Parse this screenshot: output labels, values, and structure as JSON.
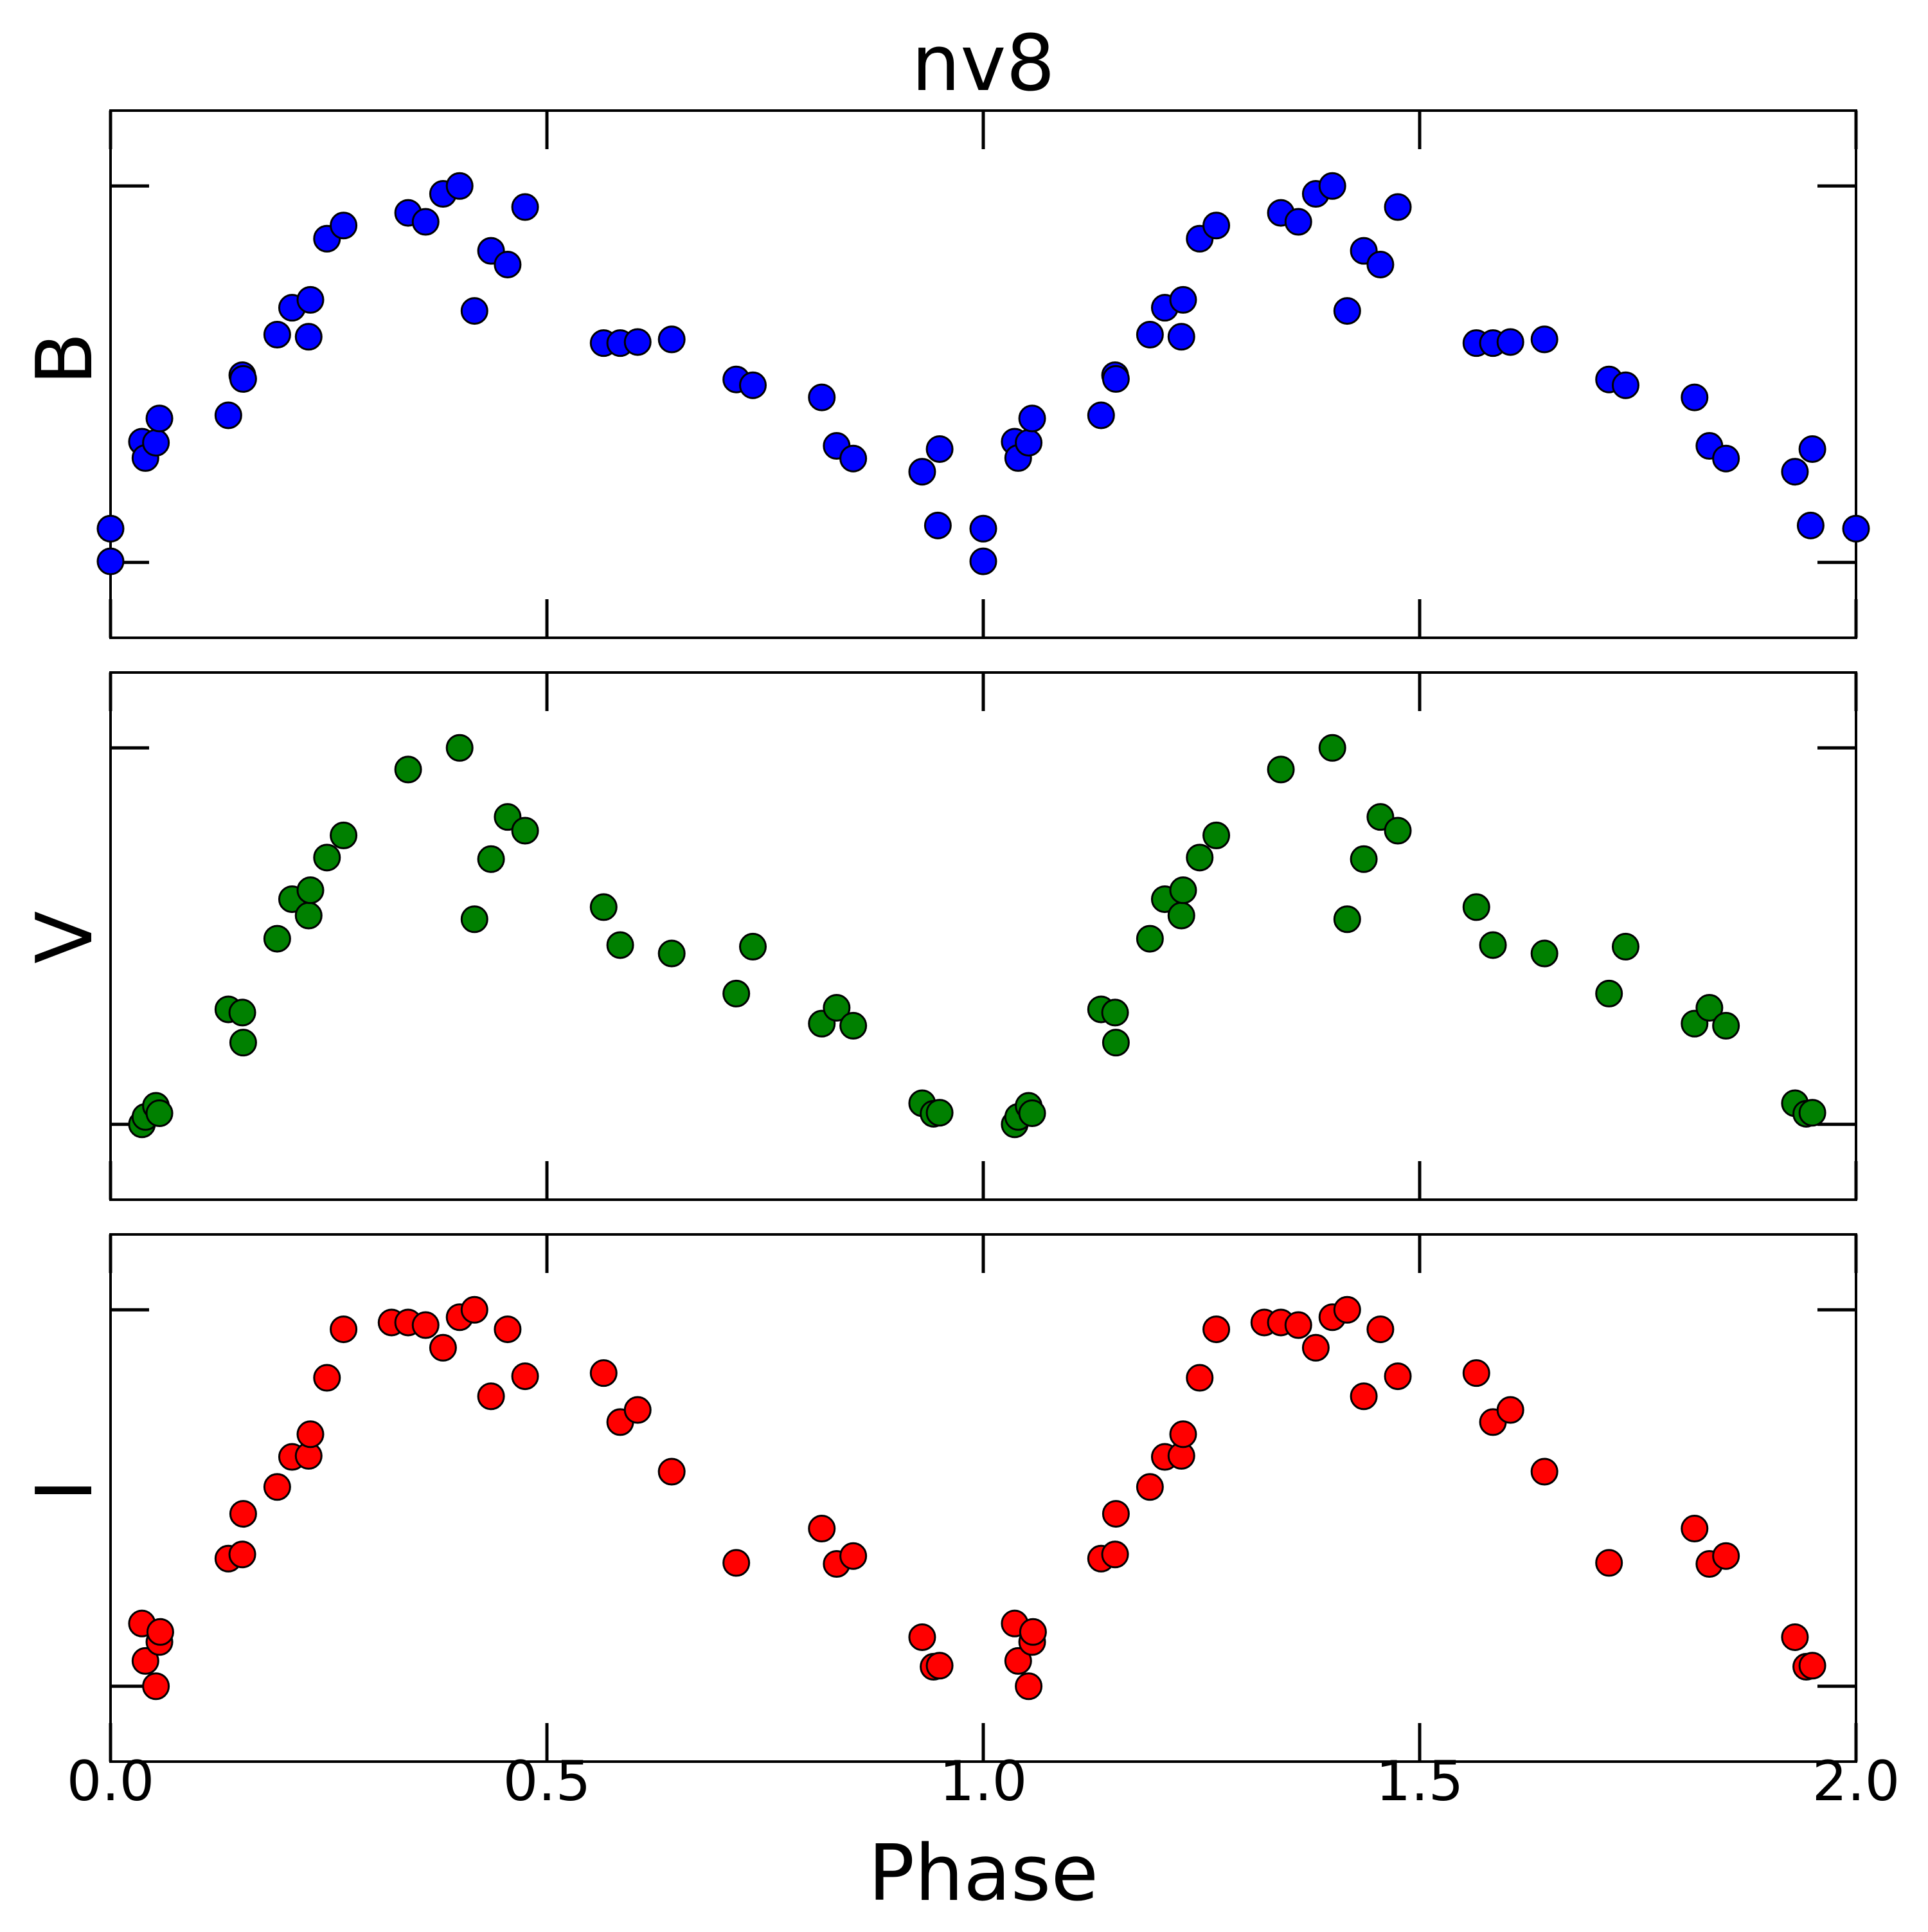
{
  "chart_data": {
    "type": "scatter",
    "title": "nv8",
    "xlabel": "Phase",
    "xlim": [
      0.0,
      2.0
    ],
    "x_ticks": [
      "0.0",
      "0.5",
      "1.0",
      "1.5",
      "2.0"
    ],
    "x_tick_values": [
      0.0,
      0.5,
      1.0,
      1.5,
      2.0
    ],
    "shared_x": true,
    "grid": false,
    "marker": "circle",
    "marker_edge_color": "#000000",
    "panels": [
      {
        "ylabel": "B",
        "color": "#0000ff",
        "ylim": [
          0,
          1
        ],
        "y_tick_values": [
          0.143,
          0.857
        ],
        "points": [
          [
            0.0,
            0.207
          ],
          [
            0.0,
            0.145
          ],
          [
            0.036,
            0.372
          ],
          [
            0.04,
            0.341
          ],
          [
            0.052,
            0.37
          ],
          [
            0.056,
            0.416
          ],
          [
            0.135,
            0.422
          ],
          [
            0.151,
            0.498
          ],
          [
            0.152,
            0.491
          ],
          [
            0.191,
            0.575
          ],
          [
            0.208,
            0.626
          ],
          [
            0.227,
            0.571
          ],
          [
            0.229,
            0.641
          ],
          [
            0.248,
            0.757
          ],
          [
            0.267,
            0.782
          ],
          [
            0.341,
            0.806
          ],
          [
            0.361,
            0.789
          ],
          [
            0.381,
            0.842
          ],
          [
            0.4,
            0.857
          ],
          [
            0.417,
            0.62
          ],
          [
            0.436,
            0.734
          ],
          [
            0.455,
            0.708
          ],
          [
            0.475,
            0.817
          ],
          [
            0.565,
            0.559
          ],
          [
            0.584,
            0.559
          ],
          [
            0.604,
            0.561
          ],
          [
            0.643,
            0.566
          ],
          [
            0.717,
            0.49
          ],
          [
            0.736,
            0.479
          ],
          [
            0.815,
            0.456
          ],
          [
            0.832,
            0.364
          ],
          [
            0.851,
            0.34
          ],
          [
            0.93,
            0.315
          ],
          [
            0.948,
            0.213
          ],
          [
            0.95,
            0.358
          ],
          [
            1.0,
            0.207
          ],
          [
            1.0,
            0.145
          ],
          [
            1.036,
            0.372
          ],
          [
            1.04,
            0.341
          ],
          [
            1.052,
            0.37
          ],
          [
            1.056,
            0.416
          ],
          [
            1.135,
            0.422
          ],
          [
            1.151,
            0.498
          ],
          [
            1.152,
            0.491
          ],
          [
            1.191,
            0.575
          ],
          [
            1.208,
            0.626
          ],
          [
            1.227,
            0.571
          ],
          [
            1.229,
            0.641
          ],
          [
            1.248,
            0.757
          ],
          [
            1.267,
            0.782
          ],
          [
            1.341,
            0.806
          ],
          [
            1.361,
            0.789
          ],
          [
            1.381,
            0.842
          ],
          [
            1.4,
            0.857
          ],
          [
            1.417,
            0.62
          ],
          [
            1.436,
            0.734
          ],
          [
            1.455,
            0.708
          ],
          [
            1.475,
            0.817
          ],
          [
            1.565,
            0.559
          ],
          [
            1.584,
            0.559
          ],
          [
            1.604,
            0.561
          ],
          [
            1.643,
            0.566
          ],
          [
            1.717,
            0.49
          ],
          [
            1.736,
            0.479
          ],
          [
            1.815,
            0.456
          ],
          [
            1.832,
            0.364
          ],
          [
            1.851,
            0.34
          ],
          [
            1.93,
            0.315
          ],
          [
            1.948,
            0.213
          ],
          [
            1.95,
            0.358
          ],
          [
            2.0,
            0.207
          ]
        ]
      },
      {
        "ylabel": "V",
        "color": "#008000",
        "ylim": [
          0,
          1
        ],
        "y_tick_values": [
          0.143,
          0.857
        ],
        "points": [
          [
            0.036,
            0.143
          ],
          [
            0.04,
            0.157
          ],
          [
            0.052,
            0.178
          ],
          [
            0.056,
            0.164
          ],
          [
            0.135,
            0.361
          ],
          [
            0.151,
            0.355
          ],
          [
            0.152,
            0.298
          ],
          [
            0.191,
            0.495
          ],
          [
            0.208,
            0.57
          ],
          [
            0.227,
            0.539
          ],
          [
            0.229,
            0.587
          ],
          [
            0.248,
            0.649
          ],
          [
            0.267,
            0.691
          ],
          [
            0.341,
            0.816
          ],
          [
            0.4,
            0.857
          ],
          [
            0.417,
            0.532
          ],
          [
            0.436,
            0.646
          ],
          [
            0.455,
            0.726
          ],
          [
            0.475,
            0.7
          ],
          [
            0.565,
            0.555
          ],
          [
            0.584,
            0.483
          ],
          [
            0.643,
            0.467
          ],
          [
            0.717,
            0.391
          ],
          [
            0.736,
            0.48
          ],
          [
            0.815,
            0.334
          ],
          [
            0.832,
            0.364
          ],
          [
            0.851,
            0.33
          ],
          [
            0.93,
            0.183
          ],
          [
            0.943,
            0.163
          ],
          [
            0.95,
            0.165
          ],
          [
            1.036,
            0.143
          ],
          [
            1.04,
            0.157
          ],
          [
            1.052,
            0.178
          ],
          [
            1.056,
            0.164
          ],
          [
            1.135,
            0.361
          ],
          [
            1.151,
            0.355
          ],
          [
            1.152,
            0.298
          ],
          [
            1.191,
            0.495
          ],
          [
            1.208,
            0.57
          ],
          [
            1.227,
            0.539
          ],
          [
            1.229,
            0.587
          ],
          [
            1.248,
            0.649
          ],
          [
            1.267,
            0.691
          ],
          [
            1.341,
            0.816
          ],
          [
            1.4,
            0.857
          ],
          [
            1.417,
            0.532
          ],
          [
            1.436,
            0.646
          ],
          [
            1.455,
            0.726
          ],
          [
            1.475,
            0.7
          ],
          [
            1.565,
            0.555
          ],
          [
            1.584,
            0.483
          ],
          [
            1.643,
            0.467
          ],
          [
            1.717,
            0.391
          ],
          [
            1.736,
            0.48
          ],
          [
            1.815,
            0.334
          ],
          [
            1.832,
            0.364
          ],
          [
            1.851,
            0.33
          ],
          [
            1.93,
            0.183
          ],
          [
            1.943,
            0.163
          ],
          [
            1.95,
            0.165
          ]
        ]
      },
      {
        "ylabel": "I",
        "color": "#ff0000",
        "ylim": [
          0,
          1
        ],
        "y_tick_values": [
          0.143,
          0.857
        ],
        "points": [
          [
            0.036,
            0.262
          ],
          [
            0.04,
            0.191
          ],
          [
            0.052,
            0.143
          ],
          [
            0.056,
            0.227
          ],
          [
            0.057,
            0.246
          ],
          [
            0.135,
            0.385
          ],
          [
            0.151,
            0.393
          ],
          [
            0.152,
            0.47
          ],
          [
            0.191,
            0.521
          ],
          [
            0.208,
            0.578
          ],
          [
            0.227,
            0.58
          ],
          [
            0.229,
            0.621
          ],
          [
            0.248,
            0.728
          ],
          [
            0.267,
            0.82
          ],
          [
            0.322,
            0.833
          ],
          [
            0.341,
            0.833
          ],
          [
            0.361,
            0.828
          ],
          [
            0.381,
            0.785
          ],
          [
            0.4,
            0.843
          ],
          [
            0.417,
            0.857
          ],
          [
            0.436,
            0.693
          ],
          [
            0.455,
            0.82
          ],
          [
            0.475,
            0.731
          ],
          [
            0.565,
            0.737
          ],
          [
            0.584,
            0.644
          ],
          [
            0.604,
            0.667
          ],
          [
            0.643,
            0.55
          ],
          [
            0.717,
            0.377
          ],
          [
            0.815,
            0.442
          ],
          [
            0.832,
            0.375
          ],
          [
            0.851,
            0.39
          ],
          [
            0.93,
            0.236
          ],
          [
            0.943,
            0.18
          ],
          [
            0.95,
            0.182
          ],
          [
            1.036,
            0.262
          ],
          [
            1.04,
            0.191
          ],
          [
            1.052,
            0.143
          ],
          [
            1.056,
            0.227
          ],
          [
            1.057,
            0.246
          ],
          [
            1.135,
            0.385
          ],
          [
            1.151,
            0.393
          ],
          [
            1.152,
            0.47
          ],
          [
            1.191,
            0.521
          ],
          [
            1.208,
            0.578
          ],
          [
            1.227,
            0.58
          ],
          [
            1.229,
            0.621
          ],
          [
            1.248,
            0.728
          ],
          [
            1.267,
            0.82
          ],
          [
            1.322,
            0.833
          ],
          [
            1.341,
            0.833
          ],
          [
            1.361,
            0.828
          ],
          [
            1.381,
            0.785
          ],
          [
            1.4,
            0.843
          ],
          [
            1.417,
            0.857
          ],
          [
            1.436,
            0.693
          ],
          [
            1.455,
            0.82
          ],
          [
            1.475,
            0.731
          ],
          [
            1.565,
            0.737
          ],
          [
            1.584,
            0.644
          ],
          [
            1.604,
            0.667
          ],
          [
            1.643,
            0.55
          ],
          [
            1.717,
            0.377
          ],
          [
            1.815,
            0.442
          ],
          [
            1.832,
            0.375
          ],
          [
            1.851,
            0.39
          ],
          [
            1.93,
            0.236
          ],
          [
            1.943,
            0.18
          ],
          [
            1.95,
            0.182
          ]
        ]
      }
    ]
  }
}
